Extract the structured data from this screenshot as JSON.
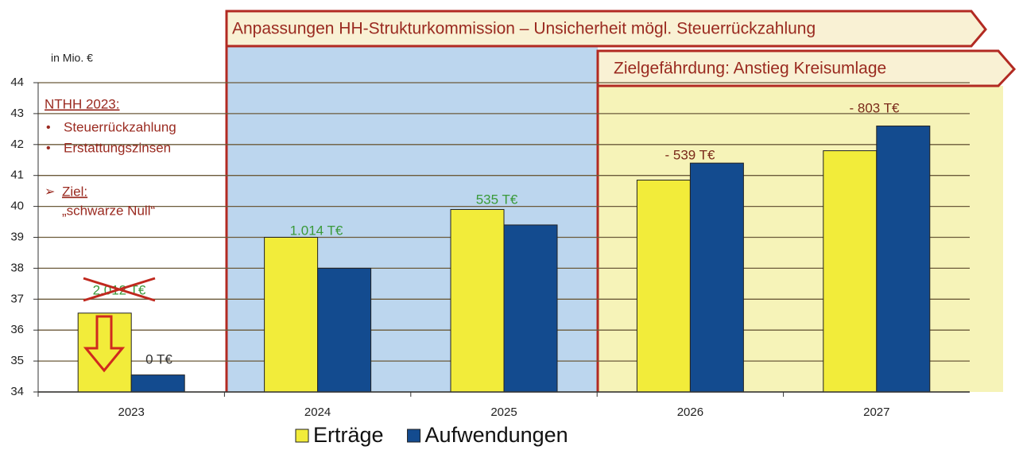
{
  "chart_data": {
    "type": "bar",
    "unit_label": "in Mio. €",
    "categories": [
      "2023",
      "2024",
      "2025",
      "2026",
      "2027"
    ],
    "series": [
      {
        "name": "Erträge",
        "color": "#f2ec3a",
        "values": [
          36.55,
          39.0,
          39.9,
          40.85,
          41.8
        ]
      },
      {
        "name": "Aufwendungen",
        "color": "#134b8f",
        "values": [
          34.55,
          38.0,
          39.4,
          41.4,
          42.6
        ]
      }
    ],
    "ylim": [
      34,
      44
    ],
    "yticks": [
      34,
      35,
      36,
      37,
      38,
      39,
      40,
      41,
      42,
      43,
      44
    ],
    "grid": true,
    "banners": [
      "Anpassungen HH-Strukturkommission – Unsicherheit mögl. Steuerrückzahlung",
      "Zielgefährdung: Anstieg Kreisumlage"
    ],
    "note": {
      "title": "NTHH 2023:",
      "bullets": [
        "Steuerrückzahlung",
        "Erstattungszinsen"
      ],
      "goal": "Ziel:",
      "goal_text": "„schwarze Null“"
    },
    "annotations": [
      {
        "text": "2.012 T€",
        "color": "#3a9a3a"
      },
      {
        "text": "0 T€",
        "color": "#333333"
      },
      {
        "text": "1.014 T€",
        "color": "#3a9a3a"
      },
      {
        "text": "535 T€",
        "color": "#3a9a3a"
      },
      {
        "text": "- 539 T€",
        "color": "#7a2a1a"
      },
      {
        "text": "- 803 T€",
        "color": "#7a2a1a"
      }
    ]
  }
}
